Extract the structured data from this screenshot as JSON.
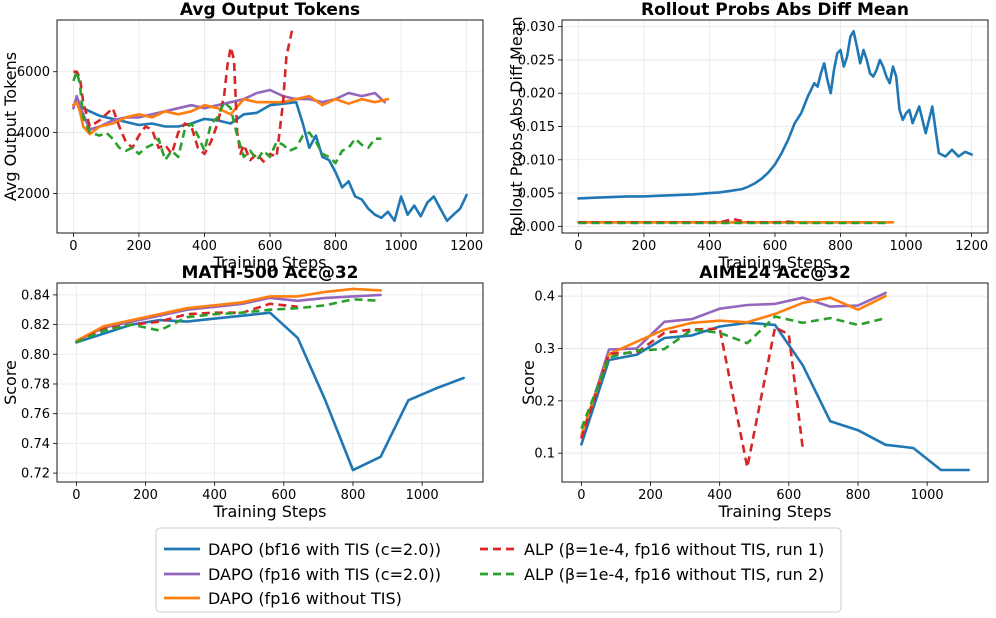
{
  "colors": {
    "bf16_tis": "#1f77b4",
    "fp16_tis": "#9467bd",
    "fp16_no_tis": "#ff7f0e",
    "alp_run1": "#d62728",
    "alp_run2": "#2ca02c"
  },
  "legend": [
    {
      "key": "bf16_tis",
      "label": "DAPO (bf16 with TIS (c=2.0))",
      "dashed": false
    },
    {
      "key": "fp16_tis",
      "label": "DAPO (fp16 with TIS (c=2.0))",
      "dashed": false
    },
    {
      "key": "fp16_no_tis",
      "label": "DAPO (fp16 without TIS)",
      "dashed": false
    },
    {
      "key": "alp_run1",
      "label": "ALP (β=1e-4, fp16 without TIS, run 1)",
      "dashed": true
    },
    {
      "key": "alp_run2",
      "label": "ALP (β=1e-4, fp16 without TIS, run 2)",
      "dashed": true
    }
  ],
  "chart_data": [
    {
      "type": "line",
      "title": "Avg Output Tokens",
      "xlabel": "Training Steps",
      "ylabel": "Avg Output Tokens",
      "xlim": [
        -50,
        1250
      ],
      "ylim": [
        700,
        7700
      ],
      "xticks": [
        0,
        200,
        400,
        600,
        800,
        1000,
        1200
      ],
      "yticks": [
        2000,
        4000,
        6000
      ],
      "series": [
        {
          "key": "bf16_tis",
          "x": [
            0,
            10,
            20,
            30,
            50,
            80,
            120,
            160,
            200,
            240,
            280,
            320,
            360,
            400,
            440,
            480,
            520,
            560,
            600,
            640,
            680,
            700,
            720,
            740,
            760,
            780,
            800,
            820,
            840,
            860,
            880,
            900,
            920,
            940,
            960,
            980,
            1000,
            1020,
            1040,
            1060,
            1080,
            1100,
            1120,
            1140,
            1160,
            1180,
            1200
          ],
          "y": [
            4900,
            5000,
            4850,
            4800,
            4700,
            4550,
            4450,
            4350,
            4250,
            4300,
            4200,
            4200,
            4300,
            4450,
            4400,
            4300,
            4600,
            4650,
            4900,
            4950,
            5000,
            4300,
            3500,
            3900,
            3200,
            3100,
            2700,
            2200,
            2400,
            1900,
            1800,
            1500,
            1300,
            1200,
            1400,
            1100,
            1900,
            1300,
            1600,
            1250,
            1700,
            1900,
            1500,
            1100,
            1300,
            1500,
            1950
          ]
        },
        {
          "key": "fp16_tis",
          "x": [
            0,
            10,
            20,
            30,
            50,
            80,
            120,
            160,
            200,
            240,
            280,
            320,
            360,
            400,
            440,
            480,
            520,
            560,
            600,
            640,
            680,
            720,
            760,
            800,
            840,
            880,
            920,
            950
          ],
          "y": [
            4800,
            5200,
            4900,
            4600,
            4100,
            4200,
            4400,
            4500,
            4500,
            4600,
            4700,
            4800,
            4900,
            4800,
            4900,
            5000,
            5100,
            5300,
            5400,
            5200,
            5100,
            5100,
            5000,
            5100,
            5300,
            5200,
            5300,
            5000
          ]
        },
        {
          "key": "fp16_no_tis",
          "x": [
            0,
            10,
            20,
            30,
            50,
            80,
            120,
            160,
            200,
            240,
            280,
            320,
            360,
            400,
            440,
            480,
            520,
            560,
            600,
            640,
            680,
            720,
            760,
            800,
            840,
            880,
            920,
            960
          ],
          "y": [
            4900,
            5000,
            4700,
            4200,
            3950,
            4200,
            4300,
            4500,
            4600,
            4500,
            4700,
            4600,
            4700,
            4900,
            4800,
            4600,
            5100,
            5000,
            5000,
            5000,
            5100,
            5200,
            4900,
            5100,
            4950,
            5100,
            5000,
            5100
          ]
        },
        {
          "key": "alp_run1",
          "x": [
            0,
            10,
            20,
            30,
            50,
            80,
            100,
            120,
            140,
            160,
            180,
            200,
            220,
            240,
            260,
            280,
            300,
            320,
            340,
            360,
            380,
            400,
            420,
            440,
            460,
            470,
            480,
            490,
            500,
            510,
            520,
            540,
            560,
            580,
            600,
            620,
            640,
            650,
            660,
            670
          ],
          "y": [
            6000,
            6000,
            5800,
            5000,
            4200,
            4400,
            4600,
            4800,
            4200,
            3700,
            3500,
            3900,
            4200,
            4100,
            3500,
            3600,
            3300,
            4000,
            4300,
            4200,
            3500,
            3300,
            3700,
            4300,
            5200,
            6200,
            6800,
            6400,
            4000,
            3300,
            3600,
            3100,
            3300,
            3050,
            3300,
            3200,
            5000,
            6500,
            7000,
            7500
          ]
        },
        {
          "key": "alp_run2",
          "x": [
            0,
            10,
            20,
            30,
            50,
            80,
            100,
            120,
            140,
            160,
            180,
            200,
            220,
            240,
            260,
            280,
            300,
            320,
            340,
            360,
            380,
            400,
            420,
            440,
            460,
            480,
            500,
            520,
            540,
            560,
            580,
            600,
            620,
            640,
            660,
            680,
            700,
            720,
            740,
            760,
            780,
            800,
            820,
            840,
            860,
            880,
            900,
            920,
            940
          ],
          "y": [
            5700,
            6000,
            5600,
            4500,
            4000,
            3900,
            4000,
            3800,
            3500,
            3400,
            3500,
            3300,
            3500,
            3600,
            3800,
            3100,
            3400,
            3200,
            4100,
            4300,
            3900,
            3400,
            4300,
            4500,
            5000,
            4800,
            3900,
            3200,
            3400,
            3100,
            3400,
            3200,
            3700,
            3600,
            3400,
            3500,
            3900,
            4000,
            3700,
            3300,
            3200,
            3000,
            3400,
            3500,
            3800,
            3600,
            3500,
            3800,
            3800
          ]
        }
      ]
    },
    {
      "type": "line",
      "title": "Rollout Probs Abs Diff Mean",
      "xlabel": "Training Steps",
      "ylabel": "Rollout Probs Abs Diff Mean",
      "xlim": [
        -50,
        1250
      ],
      "ylim": [
        -0.001,
        0.031
      ],
      "xticks": [
        0,
        200,
        400,
        600,
        800,
        1000,
        1200
      ],
      "yticks": [
        0.0,
        0.005,
        0.01,
        0.015,
        0.02,
        0.025,
        0.03
      ],
      "series": [
        {
          "key": "bf16_tis",
          "x": [
            0,
            50,
            100,
            150,
            200,
            250,
            300,
            350,
            400,
            430,
            460,
            500,
            520,
            540,
            560,
            580,
            600,
            620,
            640,
            660,
            680,
            700,
            710,
            720,
            730,
            740,
            750,
            760,
            770,
            780,
            790,
            800,
            810,
            820,
            830,
            840,
            850,
            860,
            870,
            880,
            890,
            900,
            910,
            920,
            930,
            940,
            950,
            960,
            970,
            980,
            990,
            1000,
            1010,
            1020,
            1040,
            1060,
            1080,
            1100,
            1120,
            1140,
            1160,
            1180,
            1200
          ],
          "y": [
            0.0042,
            0.0043,
            0.0044,
            0.0045,
            0.0045,
            0.0046,
            0.0047,
            0.0048,
            0.005,
            0.0051,
            0.0053,
            0.0056,
            0.006,
            0.0065,
            0.0072,
            0.0081,
            0.0093,
            0.011,
            0.013,
            0.0155,
            0.017,
            0.0195,
            0.0205,
            0.0215,
            0.021,
            0.023,
            0.0245,
            0.022,
            0.02,
            0.0235,
            0.026,
            0.0265,
            0.024,
            0.0255,
            0.0285,
            0.0293,
            0.027,
            0.0245,
            0.0265,
            0.025,
            0.023,
            0.0225,
            0.0235,
            0.025,
            0.024,
            0.0225,
            0.0215,
            0.024,
            0.0225,
            0.0175,
            0.016,
            0.017,
            0.0175,
            0.0155,
            0.018,
            0.014,
            0.018,
            0.011,
            0.0105,
            0.0115,
            0.0105,
            0.0112,
            0.0108
          ]
        },
        {
          "key": "fp16_tis",
          "x": [
            0,
            100,
            200,
            300,
            400,
            500,
            600,
            700,
            800,
            900,
            950
          ],
          "y": [
            0.0006,
            0.0006,
            0.0006,
            0.0006,
            0.0006,
            0.0006,
            0.0006,
            0.0006,
            0.0006,
            0.0006,
            0.0006
          ]
        },
        {
          "key": "fp16_no_tis",
          "x": [
            0,
            100,
            200,
            300,
            400,
            500,
            600,
            700,
            800,
            900,
            960
          ],
          "y": [
            0.0006,
            0.0006,
            0.0006,
            0.0006,
            0.0006,
            0.0006,
            0.0006,
            0.0006,
            0.0006,
            0.0006,
            0.0006
          ]
        },
        {
          "key": "alp_run1",
          "x": [
            0,
            100,
            200,
            300,
            400,
            440,
            470,
            500,
            520,
            560,
            600,
            640,
            670
          ],
          "y": [
            0.0006,
            0.0006,
            0.0006,
            0.0006,
            0.0006,
            0.0007,
            0.0011,
            0.0008,
            0.0006,
            0.0006,
            0.0006,
            0.0007,
            0.0006
          ]
        },
        {
          "key": "alp_run2",
          "x": [
            0,
            100,
            200,
            300,
            400,
            500,
            600,
            700,
            800,
            900,
            940
          ],
          "y": [
            0.0005,
            0.0005,
            0.0005,
            0.0005,
            0.0005,
            0.0005,
            0.0005,
            0.0005,
            0.0005,
            0.0005,
            0.0005
          ]
        }
      ]
    },
    {
      "type": "line",
      "title": "MATH-500 Acc@32",
      "xlabel": "Training Steps",
      "ylabel": "Score",
      "xlim": [
        -56,
        1176
      ],
      "ylim": [
        0.714,
        0.848
      ],
      "xticks": [
        0,
        200,
        400,
        600,
        800,
        1000
      ],
      "yticks": [
        0.72,
        0.74,
        0.76,
        0.78,
        0.8,
        0.82,
        0.84
      ],
      "series": [
        {
          "key": "bf16_tis",
          "x": [
            0,
            80,
            160,
            240,
            320,
            400,
            480,
            560,
            640,
            720,
            800,
            880,
            960,
            1040,
            1120
          ],
          "y": [
            0.808,
            0.814,
            0.82,
            0.823,
            0.822,
            0.824,
            0.826,
            0.828,
            0.811,
            0.769,
            0.722,
            0.731,
            0.769,
            0.777,
            0.784
          ]
        },
        {
          "key": "fp16_tis",
          "x": [
            0,
            80,
            160,
            240,
            320,
            400,
            480,
            560,
            640,
            720,
            800,
            880
          ],
          "y": [
            0.809,
            0.818,
            0.822,
            0.826,
            0.83,
            0.832,
            0.834,
            0.838,
            0.836,
            0.838,
            0.839,
            0.84
          ]
        },
        {
          "key": "fp16_no_tis",
          "x": [
            0,
            80,
            160,
            240,
            320,
            400,
            480,
            560,
            640,
            720,
            800,
            880
          ],
          "y": [
            0.809,
            0.819,
            0.823,
            0.827,
            0.831,
            0.833,
            0.835,
            0.839,
            0.839,
            0.842,
            0.844,
            0.843
          ]
        },
        {
          "key": "alp_run1",
          "x": [
            0,
            80,
            160,
            240,
            320,
            400,
            480,
            560,
            640
          ],
          "y": [
            0.808,
            0.817,
            0.82,
            0.822,
            0.827,
            0.828,
            0.828,
            0.834,
            0.832
          ]
        },
        {
          "key": "alp_run2",
          "x": [
            0,
            80,
            160,
            240,
            320,
            400,
            480,
            560,
            640,
            720,
            800,
            880
          ],
          "y": [
            0.808,
            0.816,
            0.82,
            0.816,
            0.825,
            0.827,
            0.828,
            0.83,
            0.831,
            0.833,
            0.837,
            0.836
          ]
        }
      ]
    },
    {
      "type": "line",
      "title": "AIME24 Acc@32",
      "xlabel": "Training Steps",
      "ylabel": "Score",
      "xlim": [
        -56,
        1176
      ],
      "ylim": [
        0.045,
        0.425
      ],
      "xticks": [
        0,
        200,
        400,
        600,
        800,
        1000
      ],
      "yticks": [
        0.1,
        0.2,
        0.3,
        0.4
      ],
      "series": [
        {
          "key": "bf16_tis",
          "x": [
            0,
            80,
            160,
            240,
            320,
            400,
            480,
            560,
            640,
            720,
            800,
            880,
            960,
            1040,
            1120
          ],
          "y": [
            0.117,
            0.278,
            0.288,
            0.32,
            0.325,
            0.342,
            0.349,
            0.345,
            0.268,
            0.161,
            0.144,
            0.116,
            0.11,
            0.068,
            0.068
          ]
        },
        {
          "key": "fp16_tis",
          "x": [
            0,
            80,
            160,
            240,
            320,
            400,
            480,
            560,
            640,
            720,
            800,
            880
          ],
          "y": [
            0.13,
            0.298,
            0.3,
            0.351,
            0.356,
            0.376,
            0.383,
            0.385,
            0.397,
            0.38,
            0.382,
            0.406
          ]
        },
        {
          "key": "fp16_no_tis",
          "x": [
            0,
            80,
            160,
            240,
            320,
            400,
            480,
            560,
            640,
            720,
            800,
            880
          ],
          "y": [
            0.135,
            0.289,
            0.313,
            0.336,
            0.349,
            0.353,
            0.35,
            0.366,
            0.387,
            0.397,
            0.374,
            0.4
          ]
        },
        {
          "key": "alp_run1",
          "x": [
            0,
            80,
            160,
            240,
            320,
            400,
            480,
            560,
            600,
            640
          ],
          "y": [
            0.128,
            0.29,
            0.292,
            0.33,
            0.336,
            0.338,
            0.073,
            0.34,
            0.327,
            0.11
          ]
        },
        {
          "key": "alp_run2",
          "x": [
            0,
            80,
            160,
            240,
            320,
            400,
            480,
            560,
            640,
            720,
            800,
            880
          ],
          "y": [
            0.147,
            0.283,
            0.296,
            0.299,
            0.336,
            0.33,
            0.31,
            0.361,
            0.349,
            0.358,
            0.345,
            0.358
          ]
        }
      ]
    }
  ]
}
